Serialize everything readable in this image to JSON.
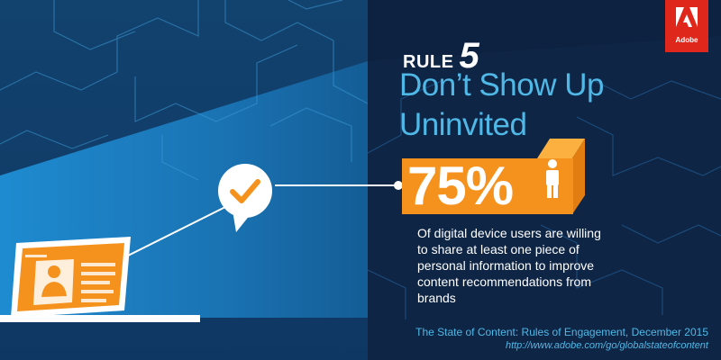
{
  "brand": {
    "name": "Adobe",
    "accent": "#f5921e",
    "blue": "#4fb8e6",
    "logo_red": "#e0271c"
  },
  "rule": {
    "label": "RULE",
    "number": "5"
  },
  "headline": {
    "line1": "Don’t Show Up",
    "line2": "Uninvited"
  },
  "stat": {
    "value": "75%",
    "icon": "person-icon"
  },
  "description": "Of digital device users are willing to share at least one piece of personal information to improve content recommendations from brands",
  "source": {
    "title": "The State of Content: Rules of Engagement, December 2015",
    "url": "http://www.adobe.com/go/globalstateofcontent"
  },
  "illustration": {
    "laptop_icon": "laptop-profile-icon",
    "bubble_icon": "checkmark-speech-bubble-icon"
  }
}
